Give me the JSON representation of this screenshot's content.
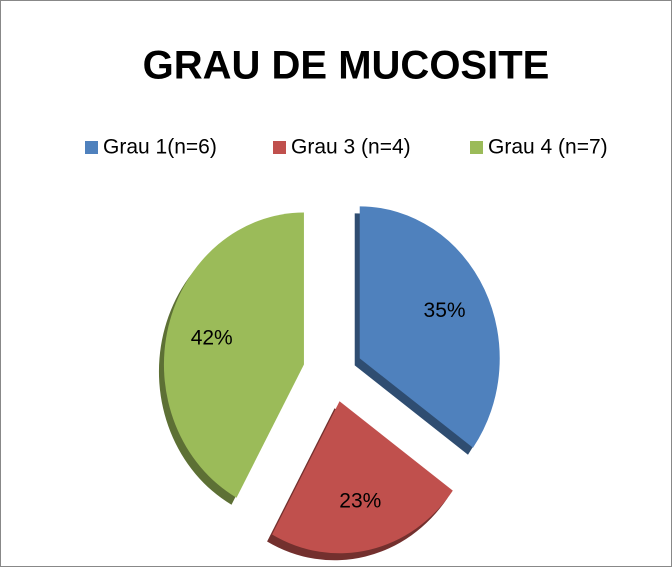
{
  "chart_data": {
    "type": "pie",
    "title": "GRAU DE MUCOSITE",
    "categories": [
      "Grau 1(n=6)",
      "Grau 3 (n=4)",
      "Grau 4 (n=7)"
    ],
    "values": [
      35,
      23,
      42
    ],
    "value_labels": [
      "35%",
      "23%",
      "42%"
    ],
    "colors": [
      "#4f81bd",
      "#c0504d",
      "#9bbb59"
    ],
    "legend": "top"
  }
}
